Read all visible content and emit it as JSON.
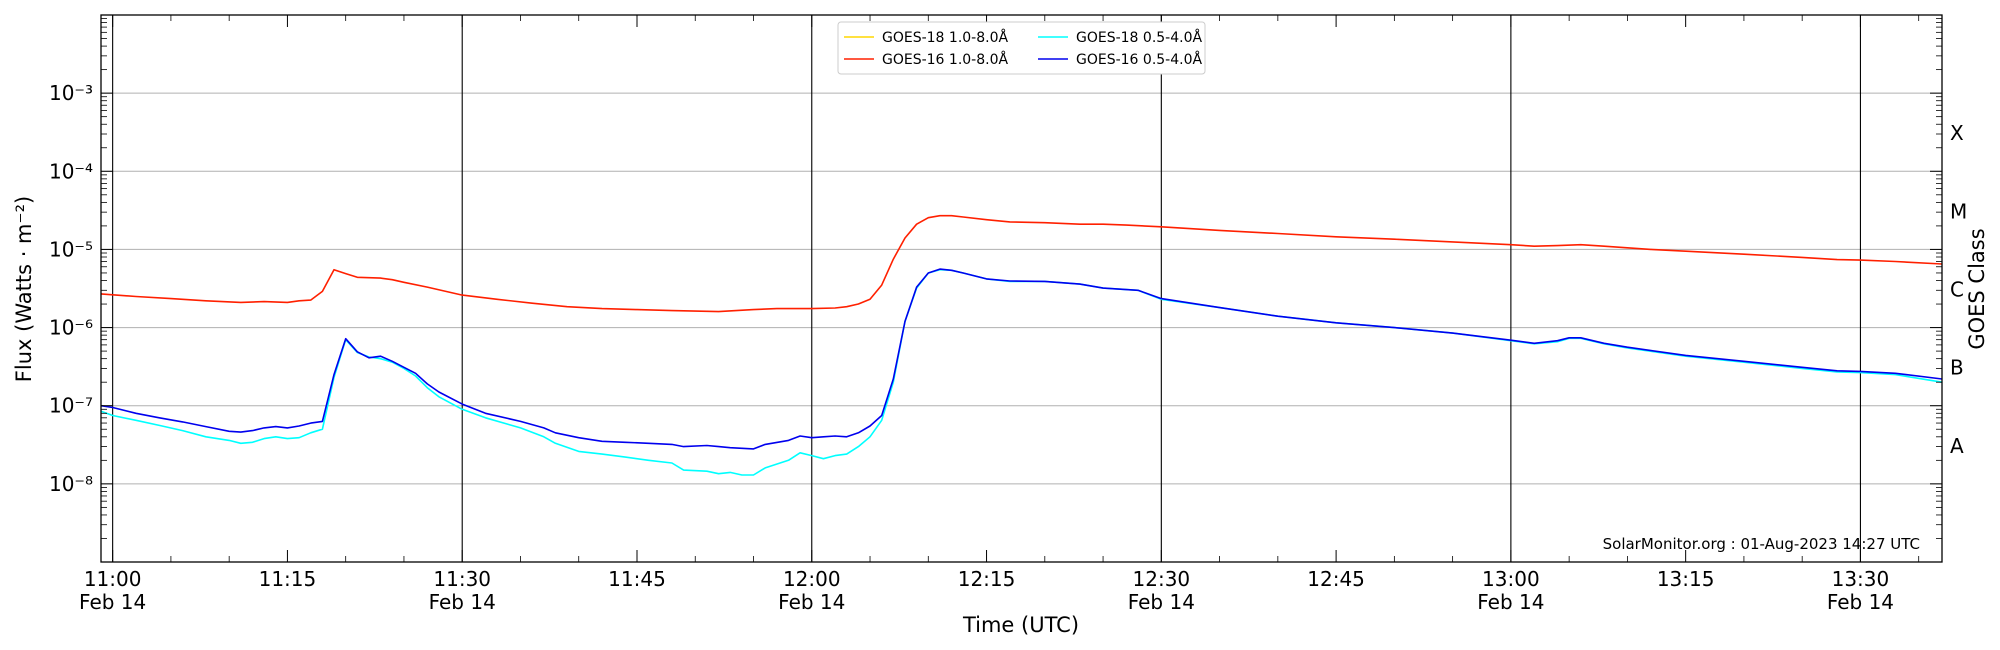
{
  "chart_data": {
    "type": "line",
    "xlabel": "Time (UTC)",
    "ylabel": "Flux (Watts · m⁻²)",
    "y2label": "GOES Class",
    "yscale": "log",
    "ylim": [
      1e-09,
      0.01
    ],
    "xlim": [
      "10:59",
      "13:37"
    ],
    "grid": "horizontal at decades",
    "legend_position": "top-center",
    "credit": "SolarMonitor.org : 01-Aug-2023 14:27 UTC",
    "x_ticks": [
      {
        "time": "11:00",
        "label": "11:00",
        "date": "Feb 14"
      },
      {
        "time": "11:15",
        "label": "11:15",
        "date": ""
      },
      {
        "time": "11:30",
        "label": "11:30",
        "date": "Feb 14"
      },
      {
        "time": "11:45",
        "label": "11:45",
        "date": ""
      },
      {
        "time": "12:00",
        "label": "12:00",
        "date": "Feb 14"
      },
      {
        "time": "12:15",
        "label": "12:15",
        "date": ""
      },
      {
        "time": "12:30",
        "label": "12:30",
        "date": "Feb 14"
      },
      {
        "time": "12:45",
        "label": "12:45",
        "date": ""
      },
      {
        "time": "13:00",
        "label": "13:00",
        "date": "Feb 14"
      },
      {
        "time": "13:15",
        "label": "13:15",
        "date": ""
      },
      {
        "time": "13:30",
        "label": "13:30",
        "date": "Feb 14"
      }
    ],
    "y_ticks": [
      {
        "value": 1e-08,
        "label": "10⁻⁸"
      },
      {
        "value": 1e-07,
        "label": "10⁻⁷"
      },
      {
        "value": 1e-06,
        "label": "10⁻⁶"
      },
      {
        "value": 1e-05,
        "label": "10⁻⁵"
      },
      {
        "value": 0.0001,
        "label": "10⁻⁴"
      },
      {
        "value": 0.001,
        "label": "10⁻³"
      }
    ],
    "vertical_lines": [
      "11:00",
      "11:30",
      "12:00",
      "12:30",
      "13:00",
      "13:30"
    ],
    "goes_classes": [
      {
        "label": "A",
        "value": 3.16e-08
      },
      {
        "label": "B",
        "value": 3.16e-07
      },
      {
        "label": "C",
        "value": 3.16e-06
      },
      {
        "label": "M",
        "value": 3.16e-05
      },
      {
        "label": "X",
        "value": 0.000316
      }
    ],
    "series": [
      {
        "name": "GOES-18 1.0-8.0Å",
        "color": "#ffd700",
        "points": []
      },
      {
        "name": "GOES-16 1.0-8.0Å",
        "color": "#ff2000",
        "points": [
          [
            "10:59",
            2.7e-06
          ],
          [
            "11:02",
            2.5e-06
          ],
          [
            "11:05",
            2.35e-06
          ],
          [
            "11:08",
            2.2e-06
          ],
          [
            "11:11",
            2.1e-06
          ],
          [
            "11:13",
            2.15e-06
          ],
          [
            "11:15",
            2.1e-06
          ],
          [
            "11:16",
            2.2e-06
          ],
          [
            "11:17",
            2.25e-06
          ],
          [
            "11:18",
            2.9e-06
          ],
          [
            "11:19",
            5.5e-06
          ],
          [
            "11:20",
            4.9e-06
          ],
          [
            "11:21",
            4.4e-06
          ],
          [
            "11:23",
            4.3e-06
          ],
          [
            "11:24",
            4.1e-06
          ],
          [
            "11:25",
            3.8e-06
          ],
          [
            "11:27",
            3.3e-06
          ],
          [
            "11:30",
            2.6e-06
          ],
          [
            "11:33",
            2.3e-06
          ],
          [
            "11:36",
            2.05e-06
          ],
          [
            "11:39",
            1.85e-06
          ],
          [
            "11:42",
            1.75e-06
          ],
          [
            "11:45",
            1.7e-06
          ],
          [
            "11:48",
            1.65e-06
          ],
          [
            "11:52",
            1.6e-06
          ],
          [
            "11:55",
            1.7e-06
          ],
          [
            "11:57",
            1.75e-06
          ],
          [
            "12:00",
            1.75e-06
          ],
          [
            "12:02",
            1.78e-06
          ],
          [
            "12:03",
            1.85e-06
          ],
          [
            "12:04",
            2e-06
          ],
          [
            "12:05",
            2.3e-06
          ],
          [
            "12:06",
            3.5e-06
          ],
          [
            "12:07",
            7.5e-06
          ],
          [
            "12:08",
            1.4e-05
          ],
          [
            "12:09",
            2.1e-05
          ],
          [
            "12:10",
            2.55e-05
          ],
          [
            "12:11",
            2.7e-05
          ],
          [
            "12:12",
            2.7e-05
          ],
          [
            "12:13",
            2.6e-05
          ],
          [
            "12:15",
            2.4e-05
          ],
          [
            "12:17",
            2.25e-05
          ],
          [
            "12:20",
            2.2e-05
          ],
          [
            "12:23",
            2.1e-05
          ],
          [
            "12:25",
            2.1e-05
          ],
          [
            "12:27",
            2.05e-05
          ],
          [
            "12:30",
            1.95e-05
          ],
          [
            "12:35",
            1.75e-05
          ],
          [
            "12:40",
            1.6e-05
          ],
          [
            "12:45",
            1.45e-05
          ],
          [
            "12:50",
            1.35e-05
          ],
          [
            "12:55",
            1.25e-05
          ],
          [
            "13:00",
            1.15e-05
          ],
          [
            "13:02",
            1.1e-05
          ],
          [
            "13:04",
            1.12e-05
          ],
          [
            "13:06",
            1.15e-05
          ],
          [
            "13:08",
            1.1e-05
          ],
          [
            "13:12",
            1e-05
          ],
          [
            "13:15",
            9.5e-06
          ],
          [
            "13:20",
            8.7e-06
          ],
          [
            "13:25",
            7.9e-06
          ],
          [
            "13:28",
            7.4e-06
          ],
          [
            "13:30",
            7.3e-06
          ],
          [
            "13:33",
            7e-06
          ],
          [
            "13:37",
            6.5e-06
          ]
        ]
      },
      {
        "name": "GOES-18 0.5-4.0Å",
        "color": "#00ffff",
        "points": [
          [
            "10:59",
            8.5e-08
          ],
          [
            "11:00",
            7.5e-08
          ],
          [
            "11:02",
            6.5e-08
          ],
          [
            "11:04",
            5.6e-08
          ],
          [
            "11:06",
            4.8e-08
          ],
          [
            "11:08",
            4e-08
          ],
          [
            "11:10",
            3.6e-08
          ],
          [
            "11:11",
            3.3e-08
          ],
          [
            "11:12",
            3.4e-08
          ],
          [
            "11:13",
            3.8e-08
          ],
          [
            "11:14",
            4e-08
          ],
          [
            "11:15",
            3.8e-08
          ],
          [
            "11:16",
            3.9e-08
          ],
          [
            "11:17",
            4.5e-08
          ],
          [
            "11:18",
            5e-08
          ],
          [
            "11:19",
            2.3e-07
          ],
          [
            "11:20",
            7e-07
          ],
          [
            "11:21",
            4.8e-07
          ],
          [
            "11:22",
            4.2e-07
          ],
          [
            "11:23",
            4e-07
          ],
          [
            "11:24",
            3.6e-07
          ],
          [
            "11:25",
            3e-07
          ],
          [
            "11:26",
            2.4e-07
          ],
          [
            "11:27",
            1.7e-07
          ],
          [
            "11:28",
            1.3e-07
          ],
          [
            "11:30",
            9e-08
          ],
          [
            "11:32",
            7e-08
          ],
          [
            "11:35",
            5.2e-08
          ],
          [
            "11:37",
            4e-08
          ],
          [
            "11:38",
            3.3e-08
          ],
          [
            "11:40",
            2.6e-08
          ],
          [
            "11:42",
            2.4e-08
          ],
          [
            "11:44",
            2.2e-08
          ],
          [
            "11:46",
            2e-08
          ],
          [
            "11:48",
            1.85e-08
          ],
          [
            "11:49",
            1.5e-08
          ],
          [
            "11:51",
            1.45e-08
          ],
          [
            "11:52",
            1.35e-08
          ],
          [
            "11:53",
            1.4e-08
          ],
          [
            "11:54",
            1.3e-08
          ],
          [
            "11:55",
            1.3e-08
          ],
          [
            "11:56",
            1.6e-08
          ],
          [
            "11:58",
            2e-08
          ],
          [
            "11:59",
            2.5e-08
          ],
          [
            "12:00",
            2.3e-08
          ],
          [
            "12:01",
            2.1e-08
          ],
          [
            "12:02",
            2.3e-08
          ],
          [
            "12:03",
            2.4e-08
          ],
          [
            "12:04",
            3e-08
          ],
          [
            "12:05",
            4e-08
          ],
          [
            "12:06",
            6.5e-08
          ],
          [
            "12:07",
            2e-07
          ],
          [
            "12:08",
            1.2e-06
          ],
          [
            "12:09",
            3.2e-06
          ],
          [
            "12:10",
            5e-06
          ],
          [
            "12:11",
            5.5e-06
          ],
          [
            "12:12",
            5.4e-06
          ],
          [
            "12:13",
            5e-06
          ],
          [
            "12:15",
            4.2e-06
          ],
          [
            "12:17",
            3.9e-06
          ],
          [
            "12:20",
            3.9e-06
          ],
          [
            "12:23",
            3.6e-06
          ],
          [
            "12:25",
            3.2e-06
          ],
          [
            "12:28",
            3e-06
          ],
          [
            "12:30",
            2.3e-06
          ],
          [
            "12:35",
            1.8e-06
          ],
          [
            "12:40",
            1.4e-06
          ],
          [
            "12:45",
            1.15e-06
          ],
          [
            "12:50",
            1e-06
          ],
          [
            "12:55",
            8.5e-07
          ],
          [
            "13:00",
            6.8e-07
          ],
          [
            "13:02",
            6.2e-07
          ],
          [
            "13:04",
            6.6e-07
          ],
          [
            "13:05",
            7.3e-07
          ],
          [
            "13:06",
            7.3e-07
          ],
          [
            "13:08",
            6.2e-07
          ],
          [
            "13:10",
            5.5e-07
          ],
          [
            "13:15",
            4.3e-07
          ],
          [
            "13:20",
            3.6e-07
          ],
          [
            "13:25",
            3e-07
          ],
          [
            "13:28",
            2.7e-07
          ],
          [
            "13:30",
            2.65e-07
          ],
          [
            "13:33",
            2.5e-07
          ],
          [
            "13:37",
            2e-07
          ]
        ]
      },
      {
        "name": "GOES-16 0.5-4.0Å",
        "color": "#0000ee",
        "points": [
          [
            "10:59",
            1e-07
          ],
          [
            "11:00",
            9.5e-08
          ],
          [
            "11:02",
            8e-08
          ],
          [
            "11:04",
            7e-08
          ],
          [
            "11:06",
            6.2e-08
          ],
          [
            "11:08",
            5.4e-08
          ],
          [
            "11:10",
            4.7e-08
          ],
          [
            "11:11",
            4.6e-08
          ],
          [
            "11:12",
            4.8e-08
          ],
          [
            "11:13",
            5.2e-08
          ],
          [
            "11:14",
            5.4e-08
          ],
          [
            "11:15",
            5.2e-08
          ],
          [
            "11:16",
            5.5e-08
          ],
          [
            "11:17",
            6e-08
          ],
          [
            "11:18",
            6.3e-08
          ],
          [
            "11:19",
            2.5e-07
          ],
          [
            "11:20",
            7.2e-07
          ],
          [
            "11:21",
            4.9e-07
          ],
          [
            "11:22",
            4.1e-07
          ],
          [
            "11:23",
            4.3e-07
          ],
          [
            "11:24",
            3.7e-07
          ],
          [
            "11:25",
            3.1e-07
          ],
          [
            "11:26",
            2.6e-07
          ],
          [
            "11:27",
            1.9e-07
          ],
          [
            "11:28",
            1.5e-07
          ],
          [
            "11:30",
            1.05e-07
          ],
          [
            "11:32",
            8e-08
          ],
          [
            "11:35",
            6.3e-08
          ],
          [
            "11:37",
            5.2e-08
          ],
          [
            "11:38",
            4.5e-08
          ],
          [
            "11:40",
            3.9e-08
          ],
          [
            "11:42",
            3.5e-08
          ],
          [
            "11:44",
            3.4e-08
          ],
          [
            "11:46",
            3.3e-08
          ],
          [
            "11:48",
            3.2e-08
          ],
          [
            "11:49",
            3e-08
          ],
          [
            "11:51",
            3.1e-08
          ],
          [
            "11:52",
            3e-08
          ],
          [
            "11:53",
            2.9e-08
          ],
          [
            "11:54",
            2.85e-08
          ],
          [
            "11:55",
            2.8e-08
          ],
          [
            "11:56",
            3.2e-08
          ],
          [
            "11:58",
            3.6e-08
          ],
          [
            "11:59",
            4.1e-08
          ],
          [
            "12:00",
            3.9e-08
          ],
          [
            "12:01",
            4e-08
          ],
          [
            "12:02",
            4.1e-08
          ],
          [
            "12:03",
            4e-08
          ],
          [
            "12:04",
            4.5e-08
          ],
          [
            "12:05",
            5.5e-08
          ],
          [
            "12:06",
            7.5e-08
          ],
          [
            "12:07",
            2.2e-07
          ],
          [
            "12:08",
            1.2e-06
          ],
          [
            "12:09",
            3.3e-06
          ],
          [
            "12:10",
            5e-06
          ],
          [
            "12:11",
            5.6e-06
          ],
          [
            "12:12",
            5.4e-06
          ],
          [
            "12:13",
            5e-06
          ],
          [
            "12:15",
            4.2e-06
          ],
          [
            "12:17",
            3.95e-06
          ],
          [
            "12:20",
            3.9e-06
          ],
          [
            "12:23",
            3.6e-06
          ],
          [
            "12:25",
            3.2e-06
          ],
          [
            "12:28",
            3e-06
          ],
          [
            "12:30",
            2.35e-06
          ],
          [
            "12:35",
            1.8e-06
          ],
          [
            "12:40",
            1.4e-06
          ],
          [
            "12:45",
            1.15e-06
          ],
          [
            "12:50",
            1e-06
          ],
          [
            "12:55",
            8.5e-07
          ],
          [
            "13:00",
            6.9e-07
          ],
          [
            "13:02",
            6.3e-07
          ],
          [
            "13:04",
            6.8e-07
          ],
          [
            "13:05",
            7.4e-07
          ],
          [
            "13:06",
            7.4e-07
          ],
          [
            "13:08",
            6.3e-07
          ],
          [
            "13:10",
            5.6e-07
          ],
          [
            "13:15",
            4.4e-07
          ],
          [
            "13:20",
            3.7e-07
          ],
          [
            "13:25",
            3.1e-07
          ],
          [
            "13:28",
            2.8e-07
          ],
          [
            "13:30",
            2.75e-07
          ],
          [
            "13:33",
            2.6e-07
          ],
          [
            "13:37",
            2.2e-07
          ]
        ]
      }
    ]
  }
}
